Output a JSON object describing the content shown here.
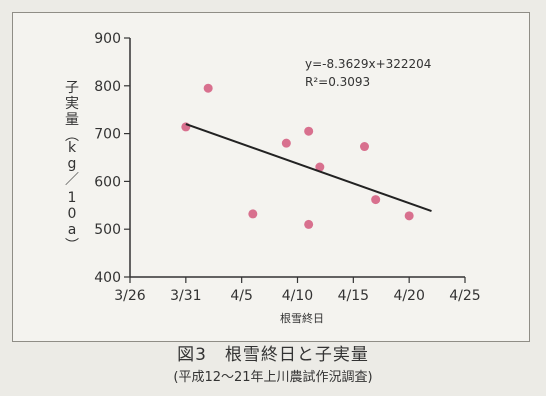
{
  "chart_data": {
    "type": "scatter",
    "xlabel": "根雪終日",
    "ylabel": "子実量(kg/10a)",
    "x_ticks": [
      "3/26",
      "3/31",
      "4/5",
      "4/10",
      "4/15",
      "4/20",
      "4/25"
    ],
    "x_tick_values": [
      0,
      5,
      10,
      15,
      20,
      25,
      30
    ],
    "y_ticks": [
      "400",
      "500",
      "600",
      "700",
      "800",
      "900"
    ],
    "xlim": [
      0,
      30
    ],
    "ylim": [
      400,
      900
    ],
    "points": [
      {
        "x": 5,
        "y": 714
      },
      {
        "x": 7,
        "y": 795
      },
      {
        "x": 11,
        "y": 532
      },
      {
        "x": 14,
        "y": 680
      },
      {
        "x": 16,
        "y": 705
      },
      {
        "x": 16,
        "y": 510
      },
      {
        "x": 17,
        "y": 630
      },
      {
        "x": 21,
        "y": 673
      },
      {
        "x": 22,
        "y": 562
      },
      {
        "x": 25,
        "y": 528
      }
    ],
    "trendline": {
      "x": [
        5,
        27
      ],
      "y": [
        720,
        538
      ]
    },
    "equation": "y=-8.3629x+322204",
    "r_squared": "R²=0.3093",
    "colors": {
      "point": "#d8708e",
      "line": "#222222",
      "axis": "#333333"
    },
    "grid": false
  },
  "caption": {
    "title": "図3　根雪終日と子実量",
    "subtitle": "(平成12～21年上川農試作況調査)"
  }
}
